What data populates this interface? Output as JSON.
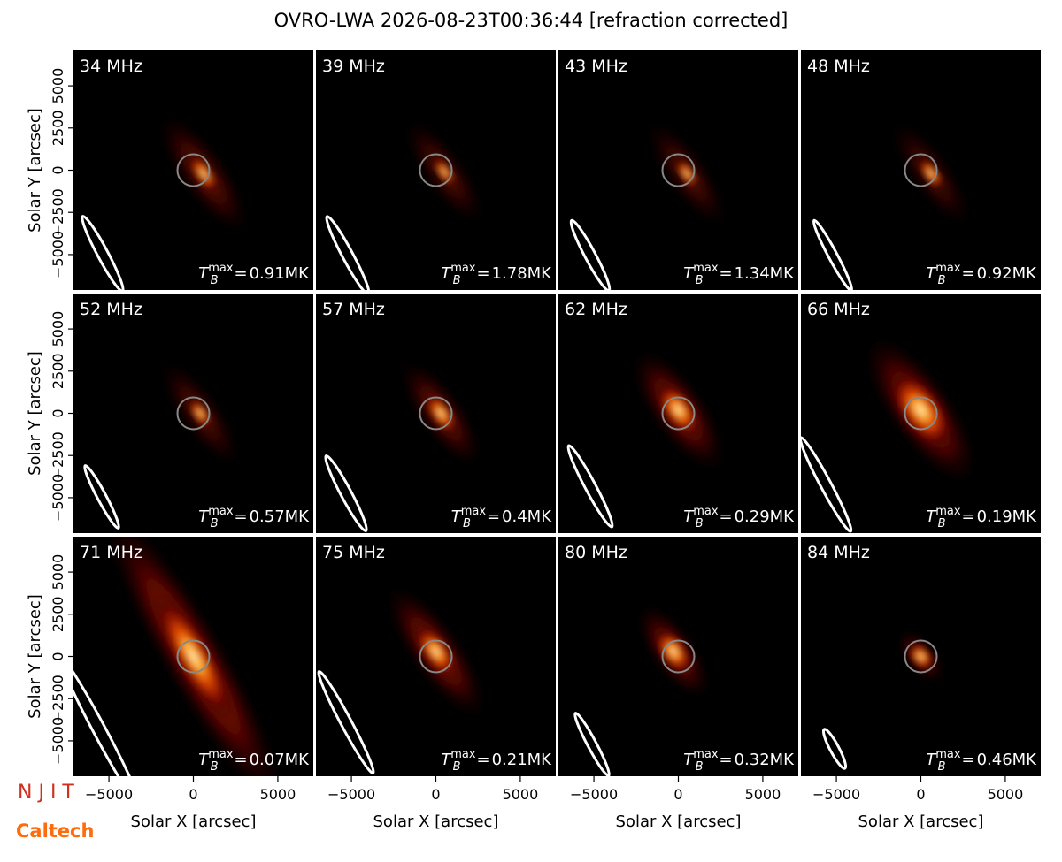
{
  "title": "OVRO-LWA 2026-08-23T00:36:44 [refraction corrected]",
  "tb": {
    "symbol": "T",
    "sub": "B",
    "sup": "max",
    "eq": "="
  },
  "logos": {
    "top": "NJIT",
    "bottom": "Caltech"
  },
  "chart_data": [
    {
      "type": "image",
      "title": "34 MHz",
      "tb_max": "0.91MK",
      "xlim": [
        -7100,
        7100
      ],
      "ylim": [
        -7100,
        7100
      ],
      "ylabel": "Solar Y [arcsec]",
      "yticks": [
        {
          "value": -5000,
          "label": "−5000"
        },
        {
          "value": -2500,
          "label": "−2500"
        },
        0,
        2500,
        5000
      ]
    },
    {
      "type": "image",
      "title": "39 MHz",
      "tb_max": "1.78MK",
      "xlim": [
        -7100,
        7100
      ],
      "ylim": [
        -7100,
        7100
      ]
    },
    {
      "type": "image",
      "title": "43 MHz",
      "tb_max": "1.34MK",
      "xlim": [
        -7100,
        7100
      ],
      "ylim": [
        -7100,
        7100
      ]
    },
    {
      "type": "image",
      "title": "48 MHz",
      "tb_max": "0.92MK",
      "xlim": [
        -7100,
        7100
      ],
      "ylim": [
        -7100,
        7100
      ]
    },
    {
      "type": "image",
      "title": "52 MHz",
      "tb_max": "0.57MK",
      "xlim": [
        -7100,
        7100
      ],
      "ylim": [
        -7100,
        7100
      ],
      "ylabel": "Solar Y [arcsec]",
      "yticks": [
        {
          "value": -5000,
          "label": "−5000"
        },
        {
          "value": -2500,
          "label": "−2500"
        },
        0,
        2500,
        5000
      ]
    },
    {
      "type": "image",
      "title": "57 MHz",
      "tb_max": "0.4MK",
      "xlim": [
        -7100,
        7100
      ],
      "ylim": [
        -7100,
        7100
      ]
    },
    {
      "type": "image",
      "title": "62 MHz",
      "tb_max": "0.29MK",
      "xlim": [
        -7100,
        7100
      ],
      "ylim": [
        -7100,
        7100
      ]
    },
    {
      "type": "image",
      "title": "66 MHz",
      "tb_max": "0.19MK",
      "xlim": [
        -7100,
        7100
      ],
      "ylim": [
        -7100,
        7100
      ]
    },
    {
      "type": "image",
      "title": "71 MHz",
      "tb_max": "0.07MK",
      "xlim": [
        -7100,
        7100
      ],
      "ylim": [
        -7100,
        7100
      ],
      "ylabel": "Solar Y [arcsec]",
      "yticks": [
        {
          "value": -5000,
          "label": "−5000"
        },
        {
          "value": -2500,
          "label": "−2500"
        },
        0,
        2500,
        5000
      ],
      "xlabel": "Solar X [arcsec]",
      "xticks": [
        {
          "value": -5000,
          "label": "−5000"
        },
        0,
        5000
      ]
    },
    {
      "type": "image",
      "title": "75 MHz",
      "tb_max": "0.21MK",
      "xlim": [
        -7100,
        7100
      ],
      "ylim": [
        -7100,
        7100
      ],
      "xlabel": "Solar X [arcsec]",
      "xticks": [
        {
          "value": -5000,
          "label": "−5000"
        },
        0,
        5000
      ]
    },
    {
      "type": "image",
      "title": "80 MHz",
      "tb_max": "0.32MK",
      "xlim": [
        -7100,
        7100
      ],
      "ylim": [
        -7100,
        7100
      ],
      "xlabel": "Solar X [arcsec]",
      "xticks": [
        {
          "value": -5000,
          "label": "−5000"
        },
        0,
        5000
      ]
    },
    {
      "type": "image",
      "title": "84 MHz",
      "tb_max": "0.46MK",
      "xlim": [
        -7100,
        7100
      ],
      "ylim": [
        -7100,
        7100
      ],
      "xlabel": "Solar X [arcsec]",
      "xticks": [
        {
          "value": -5000,
          "label": "−5000"
        },
        0,
        5000
      ]
    }
  ]
}
